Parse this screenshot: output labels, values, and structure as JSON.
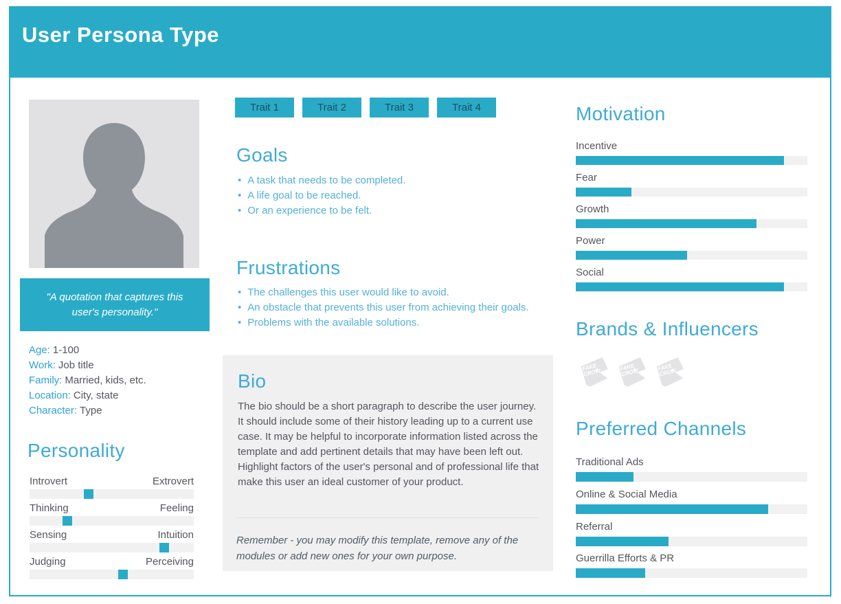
{
  "colors": {
    "teal": "#29ABC8",
    "heading": "#3FABD6",
    "label_blue": "#2BA2D8",
    "bullet_blue": "#53B0DA",
    "text_dark": "#54565C",
    "track_gray": "#F1F1F2",
    "panel_gray": "#F0F0F1",
    "avatar_bg": "#E1E1E3",
    "silhouette_gray": "#8D9399",
    "logo_gray": "#E3E3E5",
    "trait_text": "#1F4E5C",
    "note_dark": "#4D5C6A"
  },
  "header": {
    "title": "User Persona Type"
  },
  "profile": {
    "quote": "\"A quotation that captures this user's personality.\"",
    "details": [
      {
        "label": "Age:",
        "value": "1-100"
      },
      {
        "label": "Work:",
        "value": "Job title"
      },
      {
        "label": "Family:",
        "value": "Married, kids, etc."
      },
      {
        "label": "Location:",
        "value": "City, state"
      },
      {
        "label": "Character:",
        "value": "Type"
      }
    ]
  },
  "personality": {
    "heading": "Personality",
    "sliders": [
      {
        "left": "Introvert",
        "right": "Extrovert",
        "value": 36
      },
      {
        "left": "Thinking",
        "right": "Feeling",
        "value": 23
      },
      {
        "left": "Sensing",
        "right": "Intuition",
        "value": 82
      },
      {
        "left": "Judging",
        "right": "Perceiving",
        "value": 57
      }
    ]
  },
  "traits": [
    "Trait 1",
    "Trait 2",
    "Trait 3",
    "Trait 4"
  ],
  "goals": {
    "heading": "Goals",
    "items": [
      "A task that needs to be completed.",
      "A life goal to be reached.",
      "Or an experience to be felt."
    ]
  },
  "frustrations": {
    "heading": "Frustrations",
    "items": [
      "The challenges this user would like to avoid.",
      "An obstacle that prevents this user from achieving their goals.",
      "Problems with the available solutions."
    ]
  },
  "bio": {
    "heading": "Bio",
    "body": "The bio should be a short paragraph to describe the user journey. It should include some of their history leading up to a current use case. It may be helpful to incorporate information listed across the template and add pertinent details that may have been left out. Highlight factors of the user's personal and of professional life that make this user an ideal customer of your product.",
    "note": "Remember - you may modify this template, remove any of the modules or add new ones for your own purpose."
  },
  "motivation": {
    "heading": "Motivation",
    "bars": [
      {
        "label": "Incentive",
        "value": 90
      },
      {
        "label": "Fear",
        "value": 24
      },
      {
        "label": "Growth",
        "value": 78
      },
      {
        "label": "Power",
        "value": 48
      },
      {
        "label": "Social",
        "value": 90
      }
    ]
  },
  "brands": {
    "heading": "Brands & Influencers",
    "logo_lines": [
      "FAKE",
      "CROW"
    ],
    "logo_count": 3
  },
  "channels": {
    "heading": "Preferred Channels",
    "bars": [
      {
        "label": "Traditional Ads",
        "value": 25
      },
      {
        "label": "Online & Social Media",
        "value": 83
      },
      {
        "label": "Referral",
        "value": 40
      },
      {
        "label": "Guerrilla Efforts & PR",
        "value": 30
      }
    ]
  }
}
